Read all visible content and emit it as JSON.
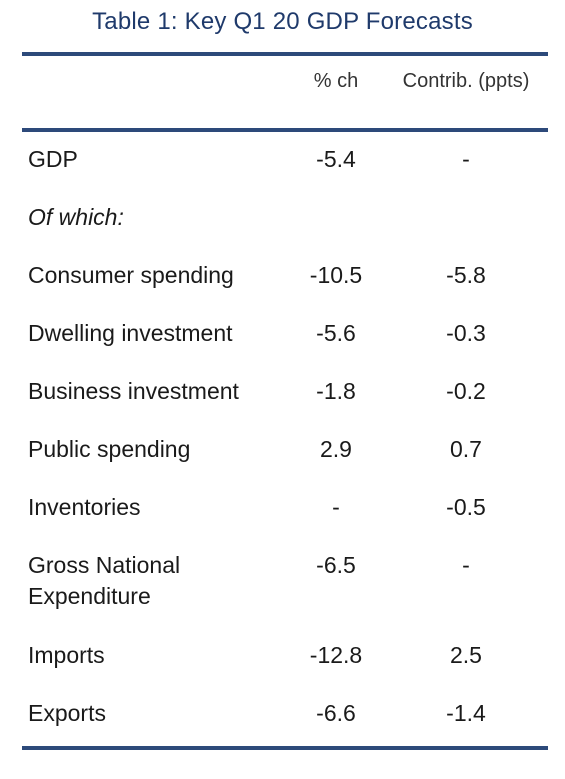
{
  "table": {
    "title": "Table 1: Key Q1 20 GDP Forecasts",
    "columns": {
      "pct": "% ch",
      "contrib": "Contrib. (ppts)"
    },
    "rows": [
      {
        "label": "GDP",
        "pct": "-5.4",
        "contrib": "-"
      },
      {
        "label": "Of which:",
        "pct": "",
        "contrib": ""
      },
      {
        "label": "Consumer spending",
        "pct": "-10.5",
        "contrib": "-5.8"
      },
      {
        "label": "Dwelling investment",
        "pct": "-5.6",
        "contrib": "-0.3"
      },
      {
        "label": "Business investment",
        "pct": "-1.8",
        "contrib": "-0.2"
      },
      {
        "label": "Public spending",
        "pct": "2.9",
        "contrib": "0.7"
      },
      {
        "label": "Inventories",
        "pct": "-",
        "contrib": "-0.5"
      },
      {
        "label_line1": "Gross National",
        "label_line2": "Expenditure",
        "pct": "-6.5",
        "contrib": "-"
      },
      {
        "label": "Imports",
        "pct": "-12.8",
        "contrib": "2.5"
      },
      {
        "label": "Exports",
        "pct": "-6.6",
        "contrib": "-1.4"
      }
    ]
  }
}
